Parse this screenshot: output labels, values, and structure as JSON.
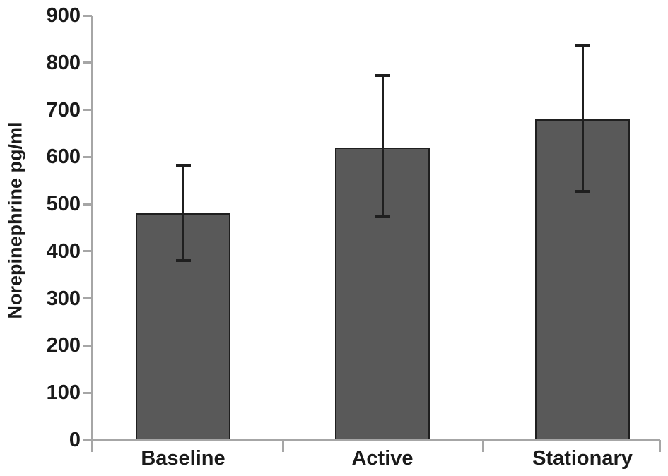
{
  "chart_data": {
    "type": "bar",
    "title": "",
    "xlabel": "",
    "ylabel": "Norepinephrine pg/ml",
    "categories": [
      "Baseline",
      "Active",
      "Stationary"
    ],
    "values": [
      480,
      620,
      680
    ],
    "error_low": [
      380,
      475,
      527
    ],
    "error_high": [
      583,
      772,
      835
    ],
    "ylim": [
      0,
      900
    ],
    "yticks": [
      0,
      100,
      200,
      300,
      400,
      500,
      600,
      700,
      800,
      900
    ],
    "grid": false,
    "legend": "none",
    "colors": {
      "bar_fill": "#595959",
      "bar_border": "#1f1f1f",
      "error_bar": "#1f1f1f",
      "axis": "#a6a6a6",
      "text": "#1a1a1a",
      "background": "#ffffff"
    }
  }
}
